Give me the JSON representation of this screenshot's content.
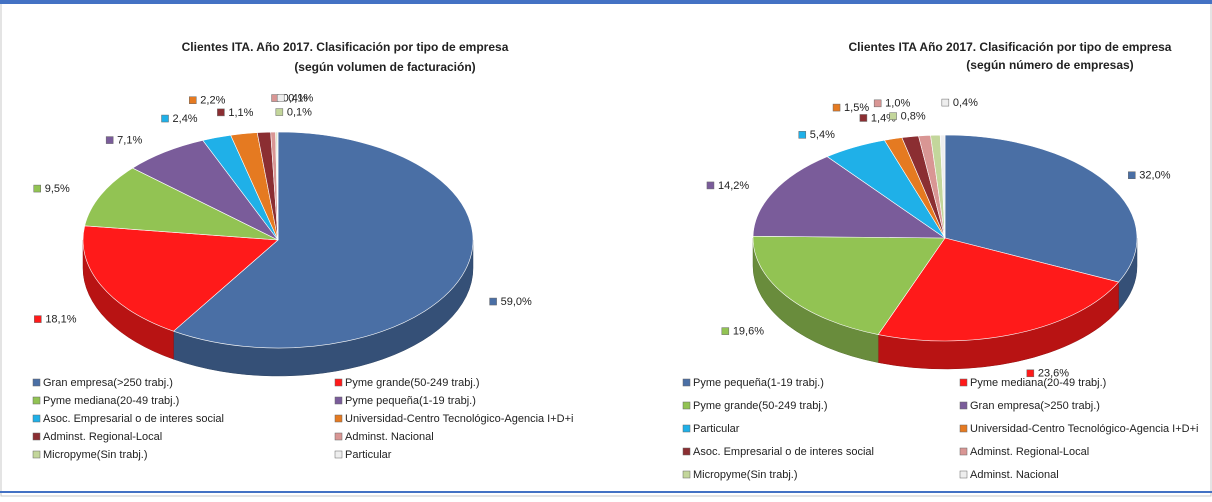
{
  "chart_data": [
    {
      "type": "pie3d",
      "title": "Clientes ITA. Año 2017.  Clasificación por tipo de empresa",
      "subtitle": "(según volumen de facturación)",
      "categories": [
        "Gran empresa(>250 trabj.)",
        "Pyme grande(50-249 trabj.)",
        "Pyme mediana(20-49 trabj.)",
        "Pyme pequeña(1-19 trabj.)",
        "Asoc. Empresarial o de interes social",
        "Universidad-Centro Tecnológico-Agencia I+D+i",
        "Adminst. Regional-Local",
        "Adminst. Nacional",
        "Micropyme(Sin trabj.)",
        "Particular"
      ],
      "values": [
        59.0,
        18.1,
        9.5,
        7.1,
        2.4,
        2.2,
        1.1,
        0.4,
        0.1,
        0.1
      ],
      "value_labels": [
        "59,0%",
        "18,1%",
        "9,5%",
        "7,1%",
        "2,4%",
        "2,2%",
        "1,1%",
        "0,4%",
        "0,1%",
        "0,1%"
      ],
      "colors": [
        "#4a6fa5",
        "#ff1a1a",
        "#92c353",
        "#7a5c9a",
        "#1fb0e8",
        "#e57a21",
        "#8b2e32",
        "#d99694",
        "#c3d69b",
        "#eeeeee"
      ]
    },
    {
      "type": "pie3d",
      "title": "Clientes ITA Año 2017.  Clasificación por tipo de empresa",
      "subtitle": "(según número de empresas)",
      "categories": [
        "Pyme pequeña(1-19 trabj.)",
        "Pyme mediana(20-49 trabj.)",
        "Pyme grande(50-249 trabj.)",
        "Gran empresa(>250 trabj.)",
        "Particular",
        "Universidad-Centro Tecnológico-Agencia I+D+i",
        "Asoc. Empresarial o de interes social",
        "Adminst. Regional-Local",
        "Micropyme(Sin trabj.)",
        "Adminst. Nacional"
      ],
      "values": [
        32.0,
        23.6,
        19.6,
        14.2,
        5.4,
        1.5,
        1.4,
        1.0,
        0.8,
        0.4
      ],
      "value_labels": [
        "32,0%",
        "23,6%",
        "19,6%",
        "14,2%",
        "5,4%",
        "1,5%",
        "1,4%",
        "1,0%",
        "0,8%",
        "0,4%"
      ],
      "colors": [
        "#4a6fa5",
        "#ff1a1a",
        "#92c353",
        "#7a5c9a",
        "#1fb0e8",
        "#e57a21",
        "#8b2e32",
        "#d99694",
        "#c3d69b",
        "#eeeeee"
      ]
    }
  ]
}
